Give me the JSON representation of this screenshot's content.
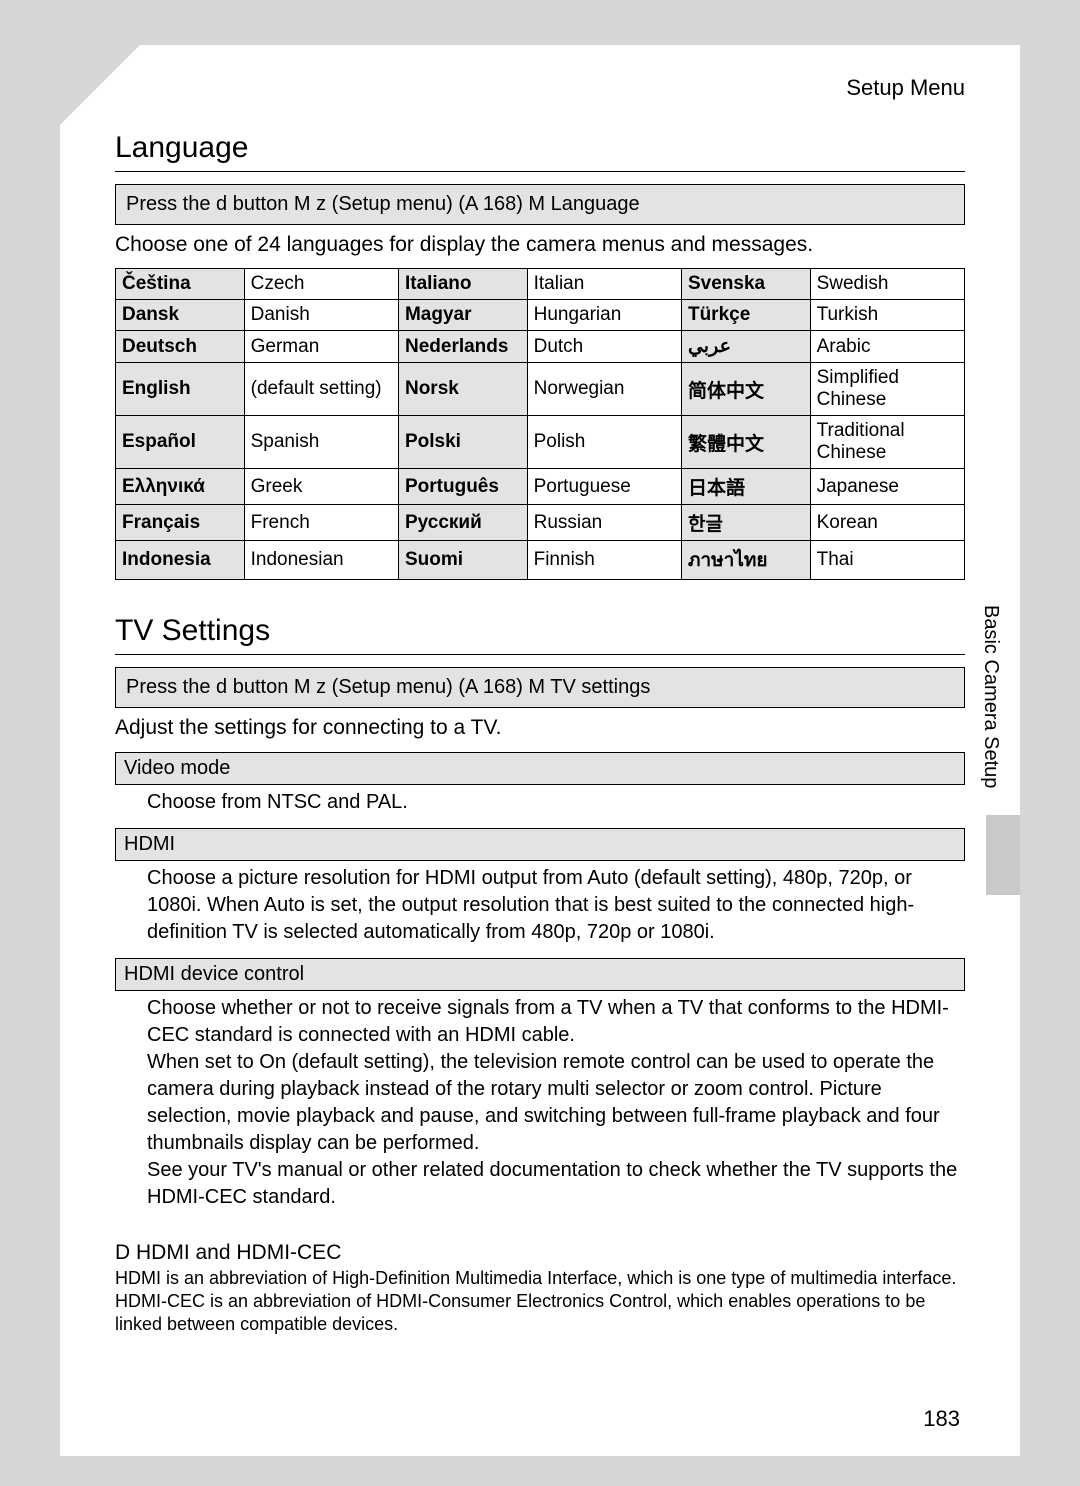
{
  "header": {
    "section": "Setup Menu"
  },
  "language": {
    "title": "Language",
    "nav": "Press the d   button M z (Setup menu) (A 168) M Language",
    "desc": "Choose one of 24 languages for display the camera menus and messages.",
    "rows": [
      [
        [
          "Čeština",
          "Czech"
        ],
        [
          "Italiano",
          "Italian"
        ],
        [
          "Svenska",
          "Swedish"
        ]
      ],
      [
        [
          "Dansk",
          "Danish"
        ],
        [
          "Magyar",
          "Hungarian"
        ],
        [
          "Türkçe",
          "Turkish"
        ]
      ],
      [
        [
          "Deutsch",
          "German"
        ],
        [
          "Nederlands",
          "Dutch"
        ],
        [
          "عربي",
          "Arabic"
        ]
      ],
      [
        [
          "English",
          "(default setting)"
        ],
        [
          "Norsk",
          "Norwegian"
        ],
        [
          "简体中文",
          "Simplified Chinese"
        ]
      ],
      [
        [
          "Español",
          "Spanish"
        ],
        [
          "Polski",
          "Polish"
        ],
        [
          "繁體中文",
          "Traditional Chinese"
        ]
      ],
      [
        [
          "Ελληνικά",
          "Greek"
        ],
        [
          "Português",
          "Portuguese"
        ],
        [
          "日本語",
          "Japanese"
        ]
      ],
      [
        [
          "Français",
          "French"
        ],
        [
          "Русский",
          "Russian"
        ],
        [
          "한글",
          "Korean"
        ]
      ],
      [
        [
          "Indonesia",
          "Indonesian"
        ],
        [
          "Suomi",
          "Finnish"
        ],
        [
          "ภาษาไทย",
          "Thai"
        ]
      ]
    ]
  },
  "tv": {
    "title": "TV Settings",
    "nav": "Press the d   button M z (Setup menu) (A 168) M TV settings",
    "desc": "Adjust the settings for connecting to a TV.",
    "video_mode": {
      "heading": "Video mode",
      "body": "Choose from NTSC and PAL."
    },
    "hdmi": {
      "heading": "HDMI",
      "body": "Choose a picture resolution for HDMI output from Auto (default setting), 480p, 720p, or 1080i. When Auto is set, the output resolution that is best suited to the connected high-definition TV is selected automatically from 480p, 720p or 1080i."
    },
    "hdmi_ctrl": {
      "heading": "HDMI device control",
      "body": "Choose whether or not to receive signals from a TV when a TV that conforms to the HDMI-CEC standard is connected with an HDMI cable.\nWhen set to On (default setting), the television remote control can be used to operate the camera during playback instead of the rotary multi selector or zoom control. Picture selection, movie playback and pause, and switching between full-frame playback and four thumbnails display can be performed.\n    See your TV's manual or other related documentation to check whether the TV supports the HDMI-CEC standard."
    }
  },
  "note": {
    "title": "D  HDMI and HDMI-CEC",
    "body": "HDMI  is an abbreviation of High-Definition Multimedia Interface, which is one type of multimedia interface.  HDMI-CEC  is an abbreviation of HDMI-Consumer Electronics Control, which enables operations to be linked between compatible devices."
  },
  "side_label": "Basic Camera Setup",
  "page_number": "183"
}
